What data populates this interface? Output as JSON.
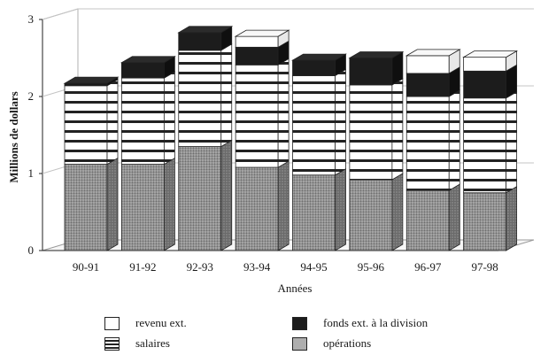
{
  "chart_data": {
    "type": "bar",
    "stacked": true,
    "three_d": true,
    "categories": [
      "90-91",
      "91-92",
      "92-93",
      "93-94",
      "94-95",
      "95-96",
      "96-97",
      "97-98"
    ],
    "series": [
      {
        "name": "opérations",
        "values": [
          1.12,
          1.12,
          1.35,
          1.08,
          0.98,
          0.92,
          0.78,
          0.75
        ],
        "pattern": "dots"
      },
      {
        "name": "salaires",
        "values": [
          1.02,
          1.12,
          1.25,
          1.33,
          1.29,
          1.23,
          1.22,
          1.23
        ],
        "pattern": "stripes"
      },
      {
        "name": "fonds ext. à la division",
        "values": [
          0.03,
          0.2,
          0.23,
          0.23,
          0.2,
          0.35,
          0.3,
          0.35
        ],
        "pattern": "black"
      },
      {
        "name": "revenu ext.",
        "values": [
          0.0,
          0.0,
          0.0,
          0.14,
          0.0,
          0.0,
          0.23,
          0.18
        ],
        "pattern": "white"
      }
    ],
    "xlabel": "Années",
    "ylabel": "Millions de dollars",
    "yticks": [
      "0",
      "1",
      "2",
      "3"
    ],
    "ylim": [
      0,
      3
    ],
    "grid": true,
    "legend_position": "bottom"
  },
  "legend": {
    "items": [
      {
        "label": "revenu ext.",
        "pattern": "white"
      },
      {
        "label": "fonds ext. à la division",
        "pattern": "black"
      },
      {
        "label": "salaires",
        "pattern": "stripes"
      },
      {
        "label": "opérations",
        "pattern": "dots"
      }
    ]
  },
  "colors": {
    "ink": "#1a1a1a",
    "dots_base": "#8e8e8e",
    "black_fill": "#1c1c1c"
  }
}
